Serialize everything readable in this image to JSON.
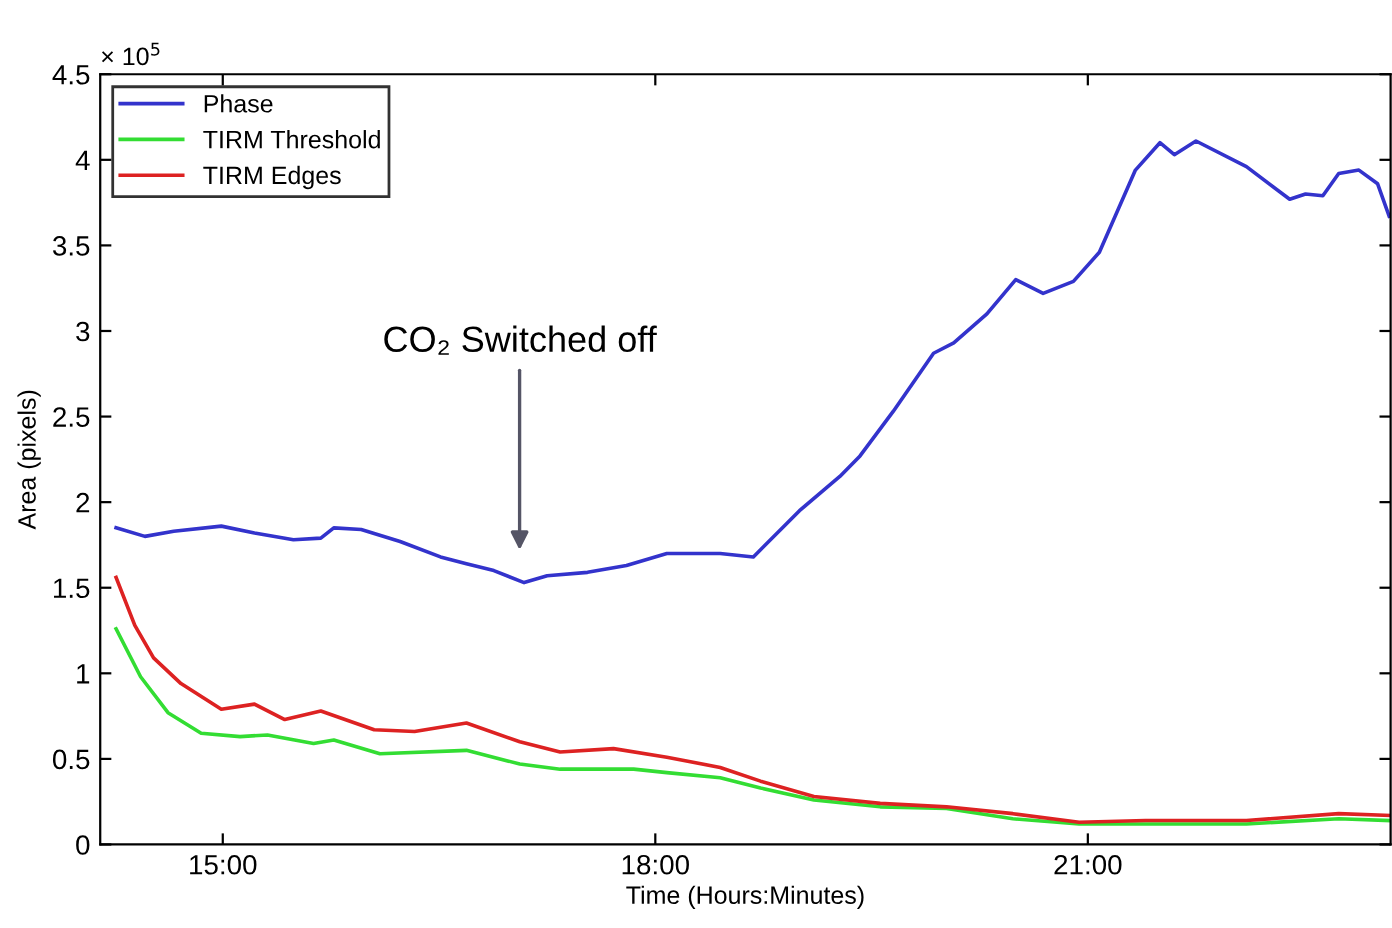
{
  "chart_data": {
    "type": "line",
    "xlabel": "Time (Hours:Minutes)",
    "ylabel": "Area (pixels)",
    "xlim": [
      14.15,
      23.1
    ],
    "xticks": [
      {
        "value": 15,
        "label": "15:00"
      },
      {
        "value": 18,
        "label": "18:00"
      },
      {
        "value": 21,
        "label": "21:00"
      }
    ],
    "ylim": [
      0,
      4.5
    ],
    "yticks": [
      0,
      0.5,
      1,
      1.5,
      2,
      2.5,
      3,
      3.5,
      4,
      4.5
    ],
    "grid": false,
    "legend": "top left",
    "marker": "none",
    "line_style": "solid",
    "annotations": [
      "× 10$^{5}$",
      "CO₂ Switched off"
    ],
    "series": [
      {
        "name": "Phase",
        "color": "#3333cc",
        "x": [
          14.26,
          14.46,
          14.66,
          14.99,
          15.22,
          15.49,
          15.68,
          15.77,
          15.96,
          16.23,
          16.51,
          16.69,
          16.88,
          17.09,
          17.25,
          17.53,
          17.8,
          18.08,
          18.17,
          18.45,
          18.68,
          19.0,
          19.28,
          19.42,
          19.65,
          19.93,
          20.07,
          20.3,
          20.5,
          20.69,
          20.9,
          21.08,
          21.33,
          21.5,
          21.6,
          21.75,
          22.1,
          22.4,
          22.51,
          22.63,
          22.74,
          22.88,
          23.01,
          23.09
        ],
        "values": [
          1.85,
          1.8,
          1.83,
          1.86,
          1.82,
          1.78,
          1.79,
          1.85,
          1.84,
          1.77,
          1.68,
          1.64,
          1.6,
          1.53,
          1.57,
          1.59,
          1.63,
          1.7,
          1.7,
          1.7,
          1.68,
          1.95,
          2.15,
          2.27,
          2.53,
          2.87,
          2.93,
          3.1,
          3.3,
          3.22,
          3.29,
          3.46,
          3.94,
          4.1,
          4.03,
          4.11,
          3.96,
          3.77,
          3.8,
          3.79,
          3.92,
          3.94,
          3.86,
          3.67
        ]
      },
      {
        "name": "TIRM Threshold",
        "color": "#33dd33",
        "x": [
          14.26,
          14.43,
          14.62,
          14.85,
          15.12,
          15.31,
          15.63,
          15.77,
          16.09,
          16.69,
          17.06,
          17.34,
          17.85,
          18.08,
          18.45,
          18.73,
          19.1,
          19.56,
          20.02,
          20.48,
          20.94,
          21.4,
          22.1,
          22.74,
          23.09
        ],
        "values": [
          1.26,
          0.98,
          0.77,
          0.65,
          0.63,
          0.64,
          0.59,
          0.61,
          0.53,
          0.55,
          0.47,
          0.44,
          0.44,
          0.42,
          0.39,
          0.33,
          0.26,
          0.22,
          0.21,
          0.15,
          0.12,
          0.12,
          0.12,
          0.15,
          0.14
        ]
      },
      {
        "name": "TIRM Edges",
        "color": "#dd2222",
        "x": [
          14.26,
          14.39,
          14.52,
          14.71,
          14.99,
          15.22,
          15.43,
          15.68,
          16.05,
          16.33,
          16.69,
          17.06,
          17.34,
          17.71,
          18.08,
          18.45,
          18.73,
          19.1,
          19.56,
          20.02,
          20.48,
          20.94,
          21.4,
          22.1,
          22.74,
          23.09
        ],
        "values": [
          1.56,
          1.28,
          1.09,
          0.94,
          0.79,
          0.82,
          0.73,
          0.78,
          0.67,
          0.66,
          0.71,
          0.6,
          0.54,
          0.56,
          0.51,
          0.45,
          0.37,
          0.28,
          0.24,
          0.22,
          0.18,
          0.13,
          0.14,
          0.14,
          0.18,
          0.17
        ]
      }
    ]
  }
}
